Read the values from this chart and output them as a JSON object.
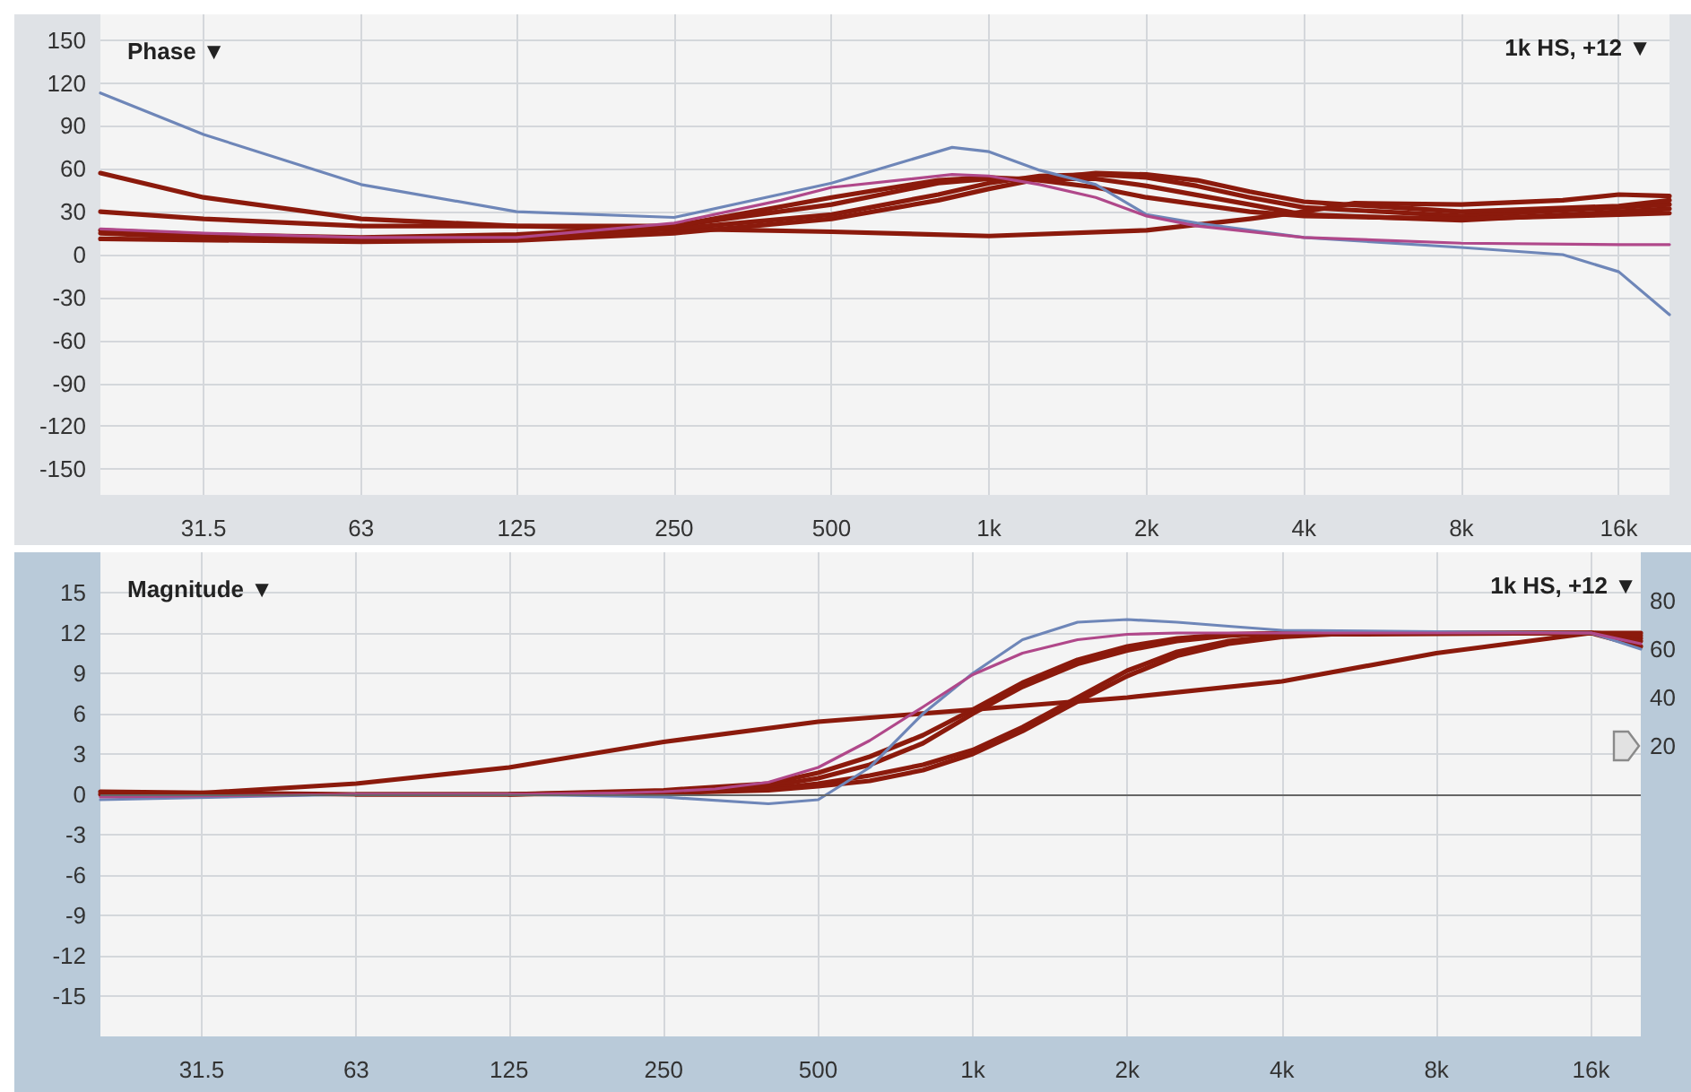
{
  "chart_data": [
    {
      "type": "line",
      "title": "Phase ▼",
      "annotations": [
        "1k HS, +12 ▼"
      ],
      "log": "x",
      "grid": true,
      "marker": "none",
      "line_style": "solid",
      "xlim": [
        20,
        20000
      ],
      "xticks": [
        31.5,
        63,
        125,
        250,
        500,
        {
          "value": 1000,
          "label": "1k"
        },
        {
          "value": 2000,
          "label": "2k"
        },
        {
          "value": 4000,
          "label": "4k"
        },
        {
          "value": 8000,
          "label": "8k"
        },
        {
          "value": 16000,
          "label": "16k"
        }
      ],
      "ylim": [
        -168,
        168
      ],
      "yticks": [
        150,
        120,
        90,
        60,
        30,
        0,
        -30,
        -60,
        -90,
        -120,
        -150
      ],
      "series": [
        {
          "color": "#6e86b8",
          "x": [
            20,
            31.5,
            63,
            125,
            250,
            500,
            850,
            1000,
            1250,
            1600,
            2000,
            2500,
            4000,
            8000,
            12500,
            16000,
            20000
          ],
          "values": [
            113,
            84,
            49,
            30,
            26,
            50,
            75,
            72,
            59,
            49,
            28,
            22,
            12,
            5,
            0,
            -12,
            -42
          ]
        },
        {
          "color": "#b0488a",
          "x": [
            20,
            31.5,
            63,
            125,
            250,
            400,
            500,
            850,
            1000,
            1250,
            1600,
            2000,
            2500,
            4000,
            8000,
            16000,
            20000
          ],
          "values": [
            18,
            15,
            12,
            12,
            22,
            38,
            47,
            56,
            55,
            49,
            40,
            27,
            20,
            12,
            8,
            7,
            7
          ]
        },
        {
          "color": "#8b1a0c",
          "x": [
            20,
            31.5,
            63,
            125,
            250,
            500,
            1000,
            2000,
            3150,
            4000,
            5000,
            8000,
            12500,
            16000,
            20000
          ],
          "values": [
            57,
            40,
            25,
            20,
            18,
            16,
            13,
            17,
            25,
            30,
            36,
            35,
            38,
            42,
            41
          ]
        },
        {
          "color": "#8b1a0c",
          "x": [
            20,
            31.5,
            63,
            125,
            250,
            500,
            800,
            1000,
            1600,
            2000,
            3150,
            4000,
            8000,
            16000,
            20000
          ],
          "values": [
            30,
            25,
            20,
            20,
            20,
            35,
            50,
            53,
            53,
            48,
            35,
            28,
            24,
            30,
            32
          ]
        },
        {
          "color": "#8b1a0c",
          "x": [
            20,
            31.5,
            63,
            125,
            250,
            500,
            800,
            1000,
            1250,
            1600,
            2000,
            2500,
            3150,
            4000,
            8000,
            16000,
            20000
          ],
          "values": [
            15,
            12,
            10,
            12,
            18,
            28,
            42,
            50,
            55,
            56,
            54,
            48,
            40,
            33,
            27,
            33,
            35
          ]
        },
        {
          "color": "#8b1a0c",
          "x": [
            20,
            63,
            125,
            250,
            500,
            800,
            1000,
            1250,
            1600,
            2000,
            2500,
            3150,
            4000,
            8000,
            16000,
            20000
          ],
          "values": [
            11,
            9,
            10,
            15,
            25,
            38,
            46,
            53,
            57,
            56,
            52,
            44,
            37,
            30,
            34,
            38
          ]
        },
        {
          "color": "#8b1a0c",
          "x": [
            20,
            31.5,
            63,
            125,
            250,
            500,
            800,
            1000,
            1250,
            1600,
            2000,
            3150,
            4000,
            8000,
            16000,
            20000
          ],
          "values": [
            17,
            14,
            12,
            14,
            20,
            40,
            52,
            54,
            52,
            47,
            40,
            30,
            27,
            25,
            28,
            29
          ]
        }
      ]
    },
    {
      "type": "line",
      "title": "Magnitude ▼",
      "annotations": [
        "1k HS, +12 ▼"
      ],
      "log": "x",
      "grid": true,
      "marker": "none",
      "line_style": "solid",
      "xlim": [
        20,
        20000
      ],
      "xticks": [
        31.5,
        63,
        125,
        250,
        500,
        {
          "value": 1000,
          "label": "1k"
        },
        {
          "value": 2000,
          "label": "2k"
        },
        {
          "value": 4000,
          "label": "4k"
        },
        {
          "value": 8000,
          "label": "8k"
        },
        {
          "value": 16000,
          "label": "16k"
        }
      ],
      "ylim": [
        -18,
        18
      ],
      "yticks": [
        15,
        12,
        9,
        6,
        3,
        0,
        -3,
        -6,
        -9,
        -12,
        -15
      ],
      "y2lim": [
        -100,
        100
      ],
      "y2ticks": [
        80,
        60,
        40,
        20
      ],
      "ref_lines": [
        {
          "axis": "y",
          "value": 0,
          "color": "#666666"
        }
      ],
      "series": [
        {
          "color": "#6e86b8",
          "x": [
            20,
            63,
            125,
            250,
            400,
            500,
            630,
            800,
            1000,
            1250,
            1600,
            2000,
            2500,
            3150,
            4000,
            8000,
            16000,
            20000
          ],
          "values": [
            -0.4,
            0,
            0,
            -0.2,
            -0.7,
            -0.4,
            2,
            6,
            9,
            11.5,
            12.8,
            13,
            12.8,
            12.5,
            12.2,
            12.1,
            12,
            10.8
          ]
        },
        {
          "color": "#b0488a",
          "x": [
            20,
            63,
            125,
            200,
            250,
            315,
            400,
            500,
            630,
            800,
            1000,
            1250,
            1600,
            2000,
            2500,
            4000,
            16000,
            20000
          ],
          "values": [
            -0.2,
            0,
            0,
            0.1,
            0.2,
            0.4,
            0.9,
            2,
            4,
            6.5,
            8.9,
            10.5,
            11.5,
            11.9,
            12,
            12,
            12,
            11.2
          ]
        },
        {
          "color": "#8b1a0c",
          "x": [
            20,
            31.5,
            63,
            125,
            250,
            500,
            1000,
            2000,
            4000,
            8000,
            16000,
            20000
          ],
          "values": [
            0,
            0.1,
            0.8,
            2,
            3.9,
            5.4,
            6.3,
            7.2,
            8.4,
            10.5,
            12,
            11.6
          ]
        },
        {
          "color": "#8b1a0c",
          "x": [
            125,
            250,
            400,
            500,
            630,
            800,
            1000,
            1250,
            1600,
            2000,
            2500,
            3150,
            4000,
            16000,
            20000
          ],
          "values": [
            0,
            0.3,
            0.8,
            1.6,
            2.8,
            4.4,
            6.3,
            8.3,
            10,
            11,
            11.6,
            11.9,
            12,
            12,
            11.4
          ]
        },
        {
          "color": "#8b1a0c",
          "x": [
            250,
            400,
            500,
            630,
            800,
            1000,
            1250,
            1600,
            2000,
            2500,
            3150,
            4000,
            16000,
            20000
          ],
          "values": [
            0.2,
            0.6,
            1.2,
            2.2,
            3.8,
            6,
            8,
            9.7,
            10.7,
            11.4,
            11.8,
            12,
            12,
            11.8
          ]
        },
        {
          "color": "#8b1a0c",
          "x": [
            63,
            125,
            250,
            400,
            500,
            630,
            800,
            1000,
            1250,
            1600,
            2000,
            2500,
            3150,
            4000,
            5000,
            16000,
            20000
          ],
          "values": [
            0,
            0,
            0.2,
            0.4,
            0.8,
            1.4,
            2.2,
            3.3,
            5,
            7.2,
            9.2,
            10.6,
            11.4,
            11.8,
            12,
            12,
            11
          ]
        },
        {
          "color": "#8b1a0c",
          "x": [
            20,
            63,
            125,
            250,
            400,
            500,
            630,
            800,
            1000,
            1250,
            1600,
            2000,
            2500,
            3150,
            4000,
            5000,
            16000,
            20000
          ],
          "values": [
            0.2,
            0,
            0,
            0.1,
            0.3,
            0.6,
            1,
            1.8,
            3,
            4.7,
            6.9,
            8.8,
            10.3,
            11.2,
            11.7,
            11.9,
            12,
            12
          ]
        }
      ]
    }
  ]
}
